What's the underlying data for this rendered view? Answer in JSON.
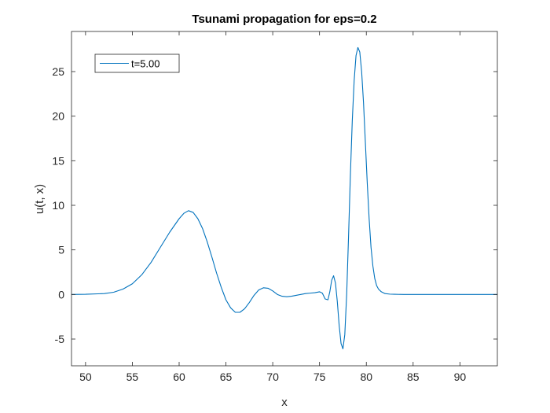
{
  "chart_data": {
    "type": "line",
    "title": "Tsunami propagation for eps=0.2",
    "xlabel": "x",
    "ylabel": "u(t, x)",
    "xlim": [
      48.5,
      94
    ],
    "ylim": [
      -8,
      29.5
    ],
    "xticks": [
      50,
      55,
      60,
      65,
      70,
      75,
      80,
      85,
      90
    ],
    "yticks": [
      -5,
      0,
      5,
      10,
      15,
      20,
      25
    ],
    "grid": false,
    "legend_position": "top-left",
    "series": [
      {
        "name": "t=5.00",
        "color": "#0072BD",
        "x": [
          48.5,
          50,
          52,
          53,
          54,
          55,
          56,
          57,
          58,
          59,
          60,
          60.5,
          61,
          61.5,
          62,
          62.5,
          63,
          63.5,
          64,
          64.5,
          65,
          65.5,
          66,
          66.5,
          67,
          67.5,
          68,
          68.5,
          69,
          69.5,
          70,
          70.5,
          71,
          71.5,
          72,
          72.5,
          73,
          73.5,
          74,
          74.5,
          75,
          75.3,
          75.6,
          75.9,
          76.1,
          76.3,
          76.5,
          76.7,
          76.9,
          77.1,
          77.3,
          77.5,
          77.7,
          77.9,
          78.1,
          78.3,
          78.5,
          78.7,
          78.9,
          79.1,
          79.3,
          79.5,
          79.7,
          79.9,
          80.1,
          80.3,
          80.5,
          80.7,
          80.9,
          81.1,
          81.3,
          81.6,
          82,
          82.5,
          83,
          84,
          85,
          88,
          94
        ],
        "values": [
          0,
          0.02,
          0.1,
          0.25,
          0.6,
          1.2,
          2.2,
          3.6,
          5.3,
          7.0,
          8.5,
          9.1,
          9.4,
          9.2,
          8.5,
          7.4,
          5.9,
          4.2,
          2.4,
          0.8,
          -0.6,
          -1.5,
          -2.0,
          -2.0,
          -1.6,
          -0.9,
          -0.1,
          0.5,
          0.75,
          0.7,
          0.4,
          0.0,
          -0.2,
          -0.25,
          -0.2,
          -0.1,
          0.0,
          0.1,
          0.15,
          0.2,
          0.3,
          0.15,
          -0.5,
          -0.6,
          0.3,
          1.6,
          2.1,
          1.3,
          -0.8,
          -3.5,
          -5.5,
          -6.1,
          -4.5,
          0.0,
          6.5,
          13.5,
          19.5,
          24.0,
          26.8,
          27.7,
          27.2,
          25.0,
          21.5,
          17.0,
          12.5,
          8.5,
          5.3,
          3.2,
          1.8,
          1.0,
          0.6,
          0.3,
          0.1,
          0.04,
          0.02,
          0.0,
          0.0,
          0.0,
          0.0
        ]
      }
    ]
  }
}
